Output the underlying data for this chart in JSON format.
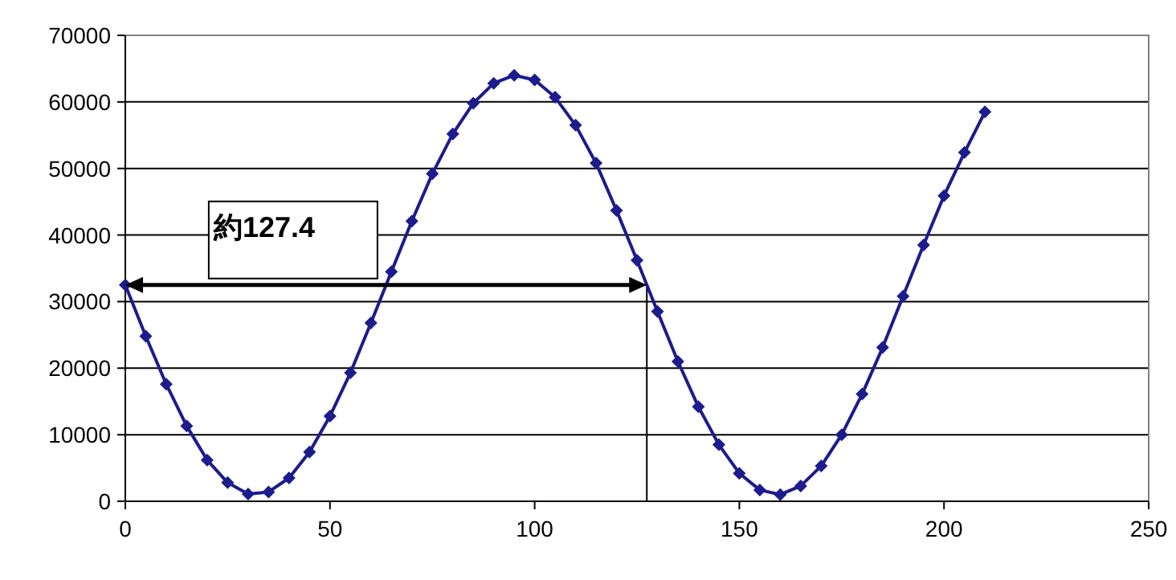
{
  "chart_data": {
    "type": "line",
    "marker": "diamond",
    "line_style": "solid",
    "grid": "y",
    "xlim": [
      0,
      250
    ],
    "xticks": [
      0,
      50,
      100,
      150,
      200,
      250
    ],
    "ylim": [
      0,
      70000
    ],
    "yticks": [
      0,
      10000,
      20000,
      30000,
      40000,
      50000,
      60000,
      70000
    ],
    "x": [
      0,
      5,
      10,
      15,
      20,
      25,
      30,
      35,
      40,
      45,
      50,
      55,
      60,
      65,
      70,
      75,
      80,
      85,
      90,
      95,
      100,
      105,
      110,
      115,
      120,
      125,
      130,
      135,
      140,
      145,
      150,
      155,
      160,
      165,
      170,
      175,
      180,
      185,
      190,
      195,
      200,
      205,
      210
    ],
    "series": [
      {
        "color": "#1c1c8c",
        "values": [
          32500,
          24800,
          17600,
          11300,
          6200,
          2800,
          1100,
          1400,
          3500,
          7400,
          12800,
          19300,
          26800,
          34500,
          42100,
          49200,
          55200,
          59800,
          62800,
          64000,
          63300,
          60700,
          56500,
          50800,
          43700,
          36200,
          28500,
          21000,
          14200,
          8500,
          4200,
          1700,
          1000,
          2300,
          5300,
          10000,
          16100,
          23100,
          30800,
          38500,
          45900,
          52400,
          58500
        ]
      }
    ],
    "ref_lines": [
      {
        "axis": "x",
        "value": 127.4,
        "color": "#000000"
      }
    ],
    "annotations": [
      "約127.4"
    ]
  }
}
